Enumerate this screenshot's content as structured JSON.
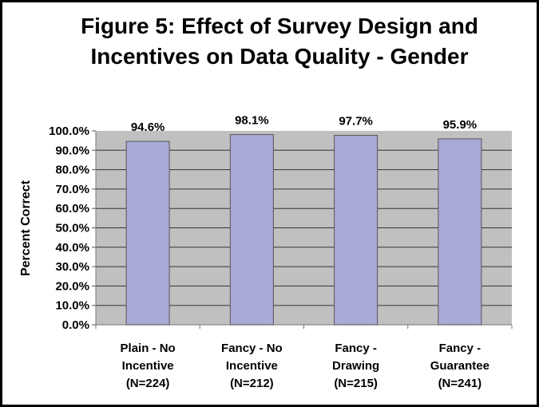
{
  "chart_data": {
    "type": "bar",
    "title_lines": [
      "Figure 5: Effect of Survey Design and",
      "Incentives on Data Quality - Gender"
    ],
    "ylabel": "Percent Correct",
    "xlabel": "",
    "categories": [
      [
        "Plain - No",
        "Incentive",
        "(N=224)"
      ],
      [
        "Fancy - No",
        "Incentive",
        "(N=212)"
      ],
      [
        "Fancy -",
        "Drawing",
        "(N=215)"
      ],
      [
        "Fancy -",
        "Guarantee",
        "(N=241)"
      ]
    ],
    "values": [
      94.6,
      98.1,
      97.7,
      95.9
    ],
    "data_labels": [
      "94.6%",
      "98.1%",
      "97.7%",
      "95.9%"
    ],
    "ylim": [
      0,
      100
    ],
    "yticks": [
      "0.0%",
      "10.0%",
      "20.0%",
      "30.0%",
      "40.0%",
      "50.0%",
      "60.0%",
      "70.0%",
      "80.0%",
      "90.0%",
      "100.0%"
    ],
    "grid": true,
    "legend": "none",
    "colors": {
      "bar": "#A9A9D6",
      "plot_background": "#C0C0C0",
      "gridline": "#000000"
    }
  }
}
